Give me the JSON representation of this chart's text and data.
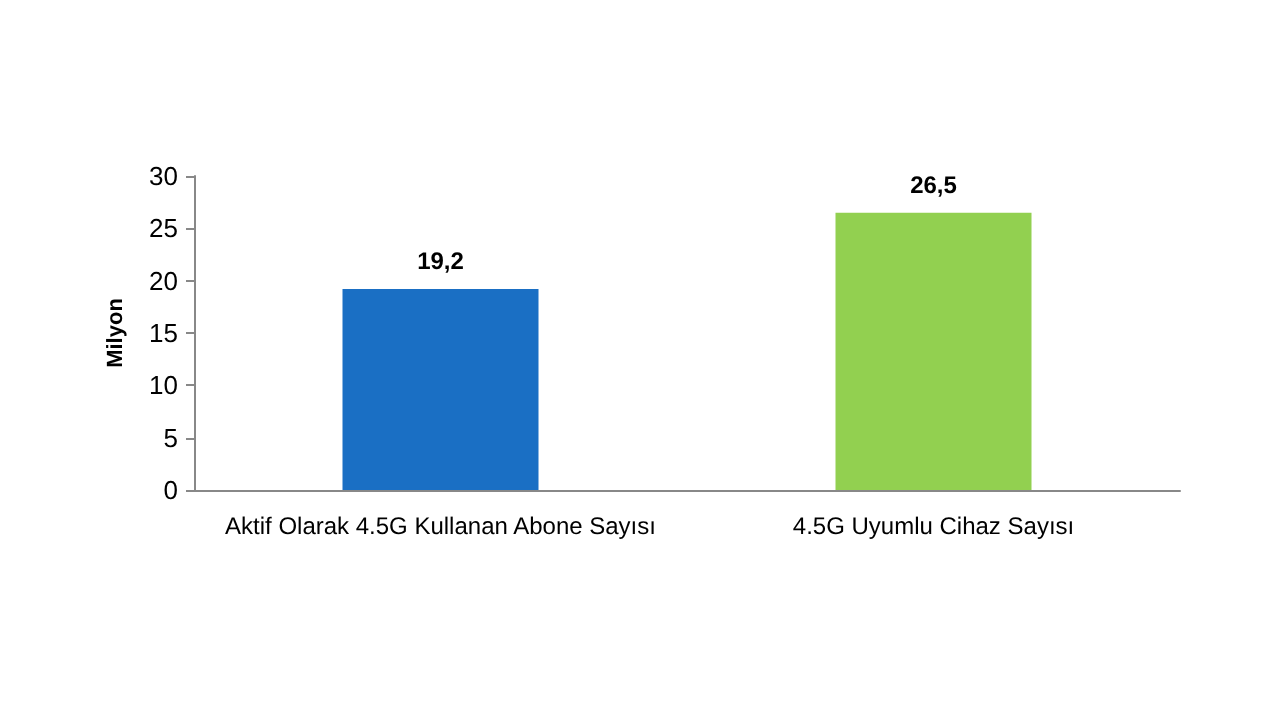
{
  "chart_data": {
    "type": "bar",
    "ylabel": "Milyon",
    "categories": [
      "Aktif Olarak 4.5G Kullanan Abone Sayısı",
      "4.5G Uyumlu Cihaz Sayısı"
    ],
    "values": [
      19.2,
      26.5
    ],
    "colors": [
      "#1a6fc4",
      "#92d050"
    ],
    "value_labels": [
      "19,2",
      "26,5"
    ],
    "ylim": [
      0,
      30
    ],
    "yticks": [
      0,
      5,
      10,
      15,
      20,
      25,
      30
    ],
    "grid": false
  }
}
